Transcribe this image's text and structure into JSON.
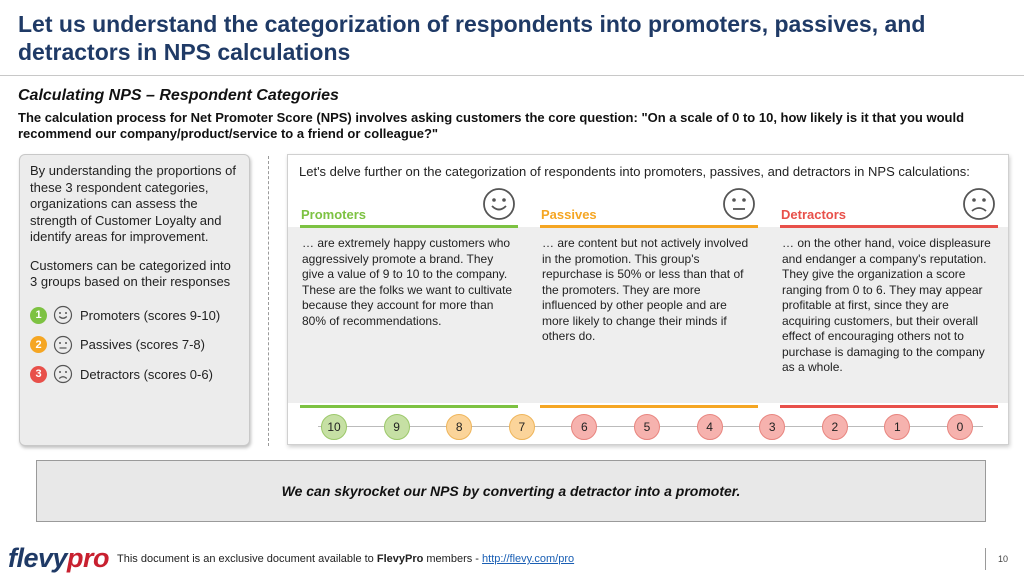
{
  "title": "Let us understand the categorization of respondents into promoters, passives, and detractors in NPS calculations",
  "subtitle": "Calculating NPS – Respondent Categories",
  "intro": "The calculation process for Net Promoter Score (NPS) involves asking customers the core question: \"On a scale of 0 to 10, how likely is it that you would recommend our company/product/service to a friend or colleague?\"",
  "left_panel": {
    "paragraph1": "By understanding the proportions of these 3 respondent categories, organizations can assess the strength of Customer Loyalty and identify areas for improvement.",
    "paragraph2": "Customers can be categorized into 3 groups based on their responses",
    "categories": [
      {
        "number": "1",
        "label": "Promoters (scores 9-10)",
        "icon": "smiley-face-icon",
        "color": "#7dc242"
      },
      {
        "number": "2",
        "label": "Passives (scores 7-8)",
        "icon": "neutral-face-icon",
        "color": "#f5a623"
      },
      {
        "number": "3",
        "label": "Detractors (scores 0-6)",
        "icon": "sad-face-icon",
        "color": "#e8504a"
      }
    ]
  },
  "right_panel": {
    "intro": "Let's delve further on the categorization of respondents into promoters, passives, and detractors in NPS calculations:",
    "columns": [
      {
        "name": "Promoters",
        "color": "#7dc242",
        "icon": "smiley-face-icon",
        "text": "… are extremely happy customers who aggressively promote a brand. They give a value of 9 to 10 to the company. These are the folks we want to cultivate because they account for more than 80% of recommendations."
      },
      {
        "name": "Passives",
        "color": "#f5a623",
        "icon": "neutral-face-icon",
        "text": "… are content but not actively involved in the promotion. This group's repurchase is 50% or less than that of the promoters. They are more influenced by other people and are more likely to change their minds if others do."
      },
      {
        "name": "Detractors",
        "color": "#e8504a",
        "icon": "sad-face-icon",
        "text": "… on the other hand, voice displeasure and endanger a company's reputation. They give the organization a score ranging from 0 to 6. They may appear profitable at first, since they are acquiring customers, but their overall effect of encouraging others not to purchase is damaging to the company as a whole."
      }
    ],
    "scale": [
      {
        "value": "10",
        "bg": "#c6e0a4",
        "border": "#9cc86a"
      },
      {
        "value": "9",
        "bg": "#c6e0a4",
        "border": "#9cc86a"
      },
      {
        "value": "8",
        "bg": "#fbd49a",
        "border": "#efb55a"
      },
      {
        "value": "7",
        "bg": "#fbd49a",
        "border": "#efb55a"
      },
      {
        "value": "6",
        "bg": "#f6b2ae",
        "border": "#e8857f"
      },
      {
        "value": "5",
        "bg": "#f6b2ae",
        "border": "#e8857f"
      },
      {
        "value": "4",
        "bg": "#f6b2ae",
        "border": "#e8857f"
      },
      {
        "value": "3",
        "bg": "#f6b2ae",
        "border": "#e8857f"
      },
      {
        "value": "2",
        "bg": "#f6b2ae",
        "border": "#e8857f"
      },
      {
        "value": "1",
        "bg": "#f6b2ae",
        "border": "#e8857f"
      },
      {
        "value": "0",
        "bg": "#f6b2ae",
        "border": "#e8857f"
      }
    ]
  },
  "banner": "We can skyrocket our NPS by converting a detractor into a promoter.",
  "footer": {
    "logo_part1": "flevy",
    "logo_part2": "pro",
    "text_before": "This document is an exclusive document available to ",
    "brand": "FlevyPro",
    "text_after": " members - ",
    "link": "http://flevy.com/pro",
    "page_number": "10"
  }
}
